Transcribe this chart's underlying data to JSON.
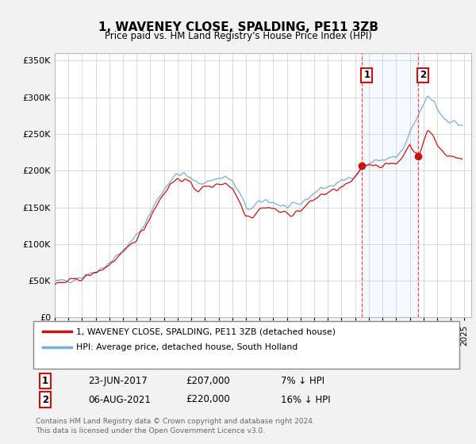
{
  "title": "1, WAVENEY CLOSE, SPALDING, PE11 3ZB",
  "subtitle": "Price paid vs. HM Land Registry's House Price Index (HPI)",
  "ylabel_ticks": [
    "£0",
    "£50K",
    "£100K",
    "£150K",
    "£200K",
    "£250K",
    "£300K",
    "£350K"
  ],
  "ytick_values": [
    0,
    50000,
    100000,
    150000,
    200000,
    250000,
    300000,
    350000
  ],
  "ylim": [
    0,
    360000
  ],
  "xlim_start": 1995.0,
  "xlim_end": 2025.5,
  "background_color": "#f2f2f2",
  "plot_bg_color": "#ffffff",
  "grid_color": "#cccccc",
  "hpi_color": "#7aadd4",
  "price_color": "#cc1111",
  "marker1_x": 2017.47,
  "marker2_x": 2021.59,
  "sale1_price": 207000,
  "sale2_price": 220000,
  "legend_entry1": "1, WAVENEY CLOSE, SPALDING, PE11 3ZB (detached house)",
  "legend_entry2": "HPI: Average price, detached house, South Holland",
  "annotation1_date": "23-JUN-2017",
  "annotation1_price": "£207,000",
  "annotation1_hpi": "7% ↓ HPI",
  "annotation2_date": "06-AUG-2021",
  "annotation2_price": "£220,000",
  "annotation2_hpi": "16% ↓ HPI",
  "footer": "Contains HM Land Registry data © Crown copyright and database right 2024.\nThis data is licensed under the Open Government Licence v3.0."
}
